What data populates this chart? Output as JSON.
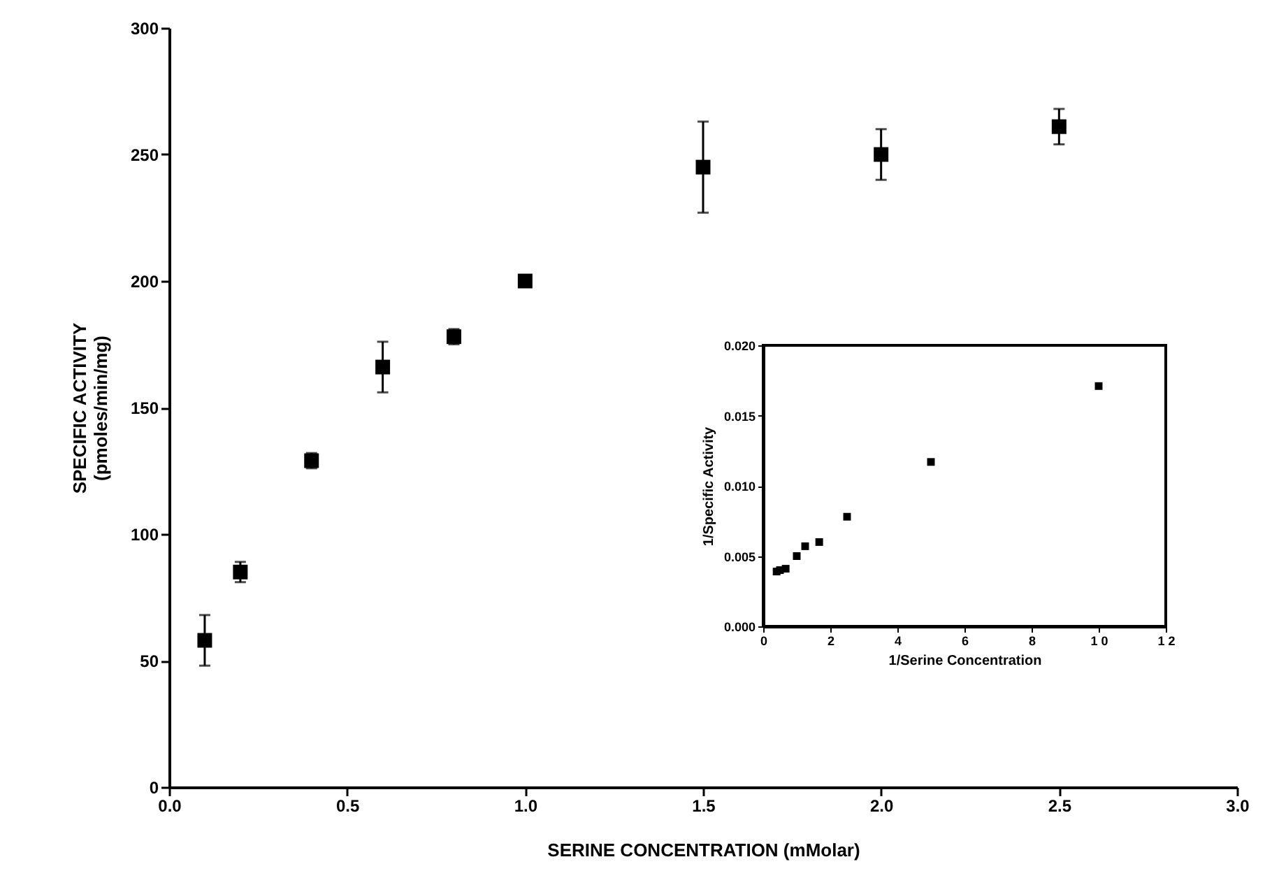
{
  "chart_data": [
    {
      "type": "scatter",
      "xlabel": "SERINE CONCENTRATION (mMolar)",
      "ylabel": "SPECIFIC ACTIVITY\n(pmoles/min/mg)",
      "x": [
        0.1,
        0.2,
        0.4,
        0.6,
        0.8,
        1.0,
        1.5,
        2.0,
        2.5
      ],
      "series": [
        {
          "color": "#000000",
          "values": [
            58,
            85,
            129,
            166,
            178,
            200,
            245,
            250,
            261
          ],
          "errors": [
            10,
            4,
            3,
            10,
            3,
            2,
            18,
            10,
            7
          ]
        }
      ],
      "xlim": [
        0,
        3
      ],
      "xticks": [
        {
          "value": 0,
          "label": "0.0"
        },
        0.5,
        {
          "value": 1,
          "label": "1.0"
        },
        1.5,
        {
          "value": 2,
          "label": "2.0"
        },
        2.5,
        {
          "value": 3,
          "label": "3.0"
        }
      ],
      "ylim": [
        0,
        300
      ],
      "yticks": [
        0,
        50,
        100,
        150,
        200,
        250,
        300
      ],
      "marker": "square",
      "grid": false
    },
    {
      "type": "scatter",
      "xlabel": "1/Serine Concentration",
      "ylabel": "1/Specific Activity",
      "x": [
        0.4,
        0.5,
        0.67,
        1.0,
        1.25,
        1.67,
        2.5,
        5.0,
        10.0
      ],
      "series": [
        {
          "color": "#000000",
          "values": [
            0.0039,
            0.004,
            0.0041,
            0.005,
            0.0057,
            0.006,
            0.0078,
            0.0117,
            0.0171
          ]
        }
      ],
      "xlim": [
        0,
        12
      ],
      "xticks": [
        0,
        2,
        4,
        6,
        8,
        {
          "value": 10,
          "label": "1 0"
        },
        {
          "value": 12,
          "label": "1 2"
        }
      ],
      "ylim": [
        0,
        0.02
      ],
      "yticks": [
        {
          "value": 0,
          "label": "0.000"
        },
        0.005,
        {
          "value": 0.01,
          "label": "0.010"
        },
        0.015,
        {
          "value": 0.02,
          "label": "0.020"
        }
      ],
      "marker": "square",
      "grid": false
    }
  ]
}
